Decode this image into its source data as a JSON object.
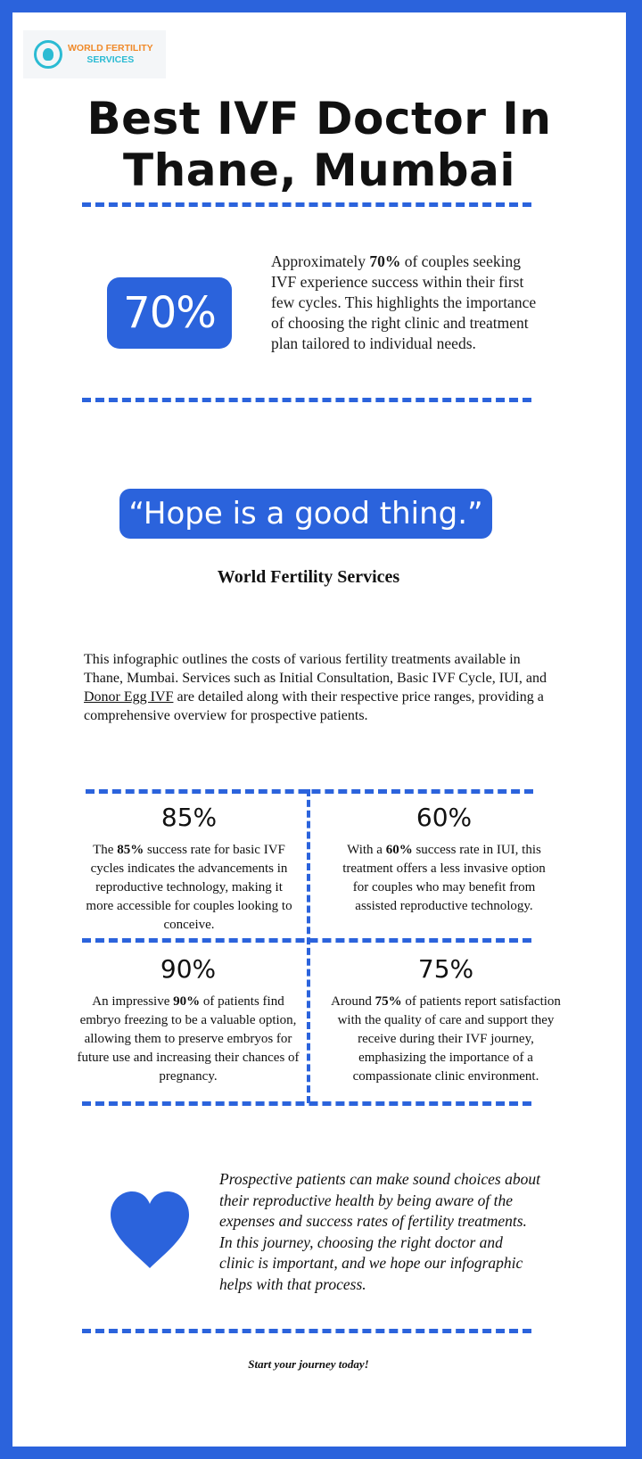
{
  "logo": {
    "line1": "WORLD FERTILITY",
    "line2": "SERVICES",
    "icon": "mother-baby-icon"
  },
  "title": {
    "line1": "Best IVF Doctor In",
    "line2": "Thane, Mumbai"
  },
  "headline_stat": {
    "value": "70%",
    "text_before": "Approximately ",
    "text_bold": "70%",
    "text_after": " of couples seeking IVF experience success within their first few cycles. This highlights the importance of choosing the right clinic and treatment plan tailored to individual needs."
  },
  "quote": {
    "text": "“Hope is a good thing.”",
    "author": "World Fertility Services"
  },
  "intro": {
    "before": "This infographic outlines the costs of various fertility treatments available in Thane, Mumbai. Services such as Initial Consultation, Basic IVF Cycle, IUI, and ",
    "link": "Donor Egg IVF",
    "after": " are detailed along with their respective price ranges, providing a comprehensive overview for prospective patients."
  },
  "stats": [
    {
      "value": "85%",
      "before": "The ",
      "bold": "85%",
      "after": " success rate for basic IVF cycles indicates the advancements in reproductive technology, making it more accessible for couples looking to conceive."
    },
    {
      "value": "60%",
      "before": "With a ",
      "bold": "60%",
      "after": " success rate in IUI, this treatment offers a less invasive option for couples who may benefit from assisted reproductive technology."
    },
    {
      "value": "90%",
      "before": "An impressive ",
      "bold": "90%",
      "after": " of patients find embryo freezing to be a valuable option, allowing them to preserve embryos for future use and increasing their chances of pregnancy."
    },
    {
      "value": "75%",
      "before": "Around ",
      "bold": "75%",
      "after": " of patients report satisfaction with the quality of care and support they receive during their IVF journey, emphasizing the importance of a compassionate clinic environment."
    }
  ],
  "closing": {
    "icon": "heart-icon",
    "text": "Prospective patients can make sound choices about their reproductive health by being aware of the expenses and success rates of fertility treatments. In this journey, choosing the right doctor and clinic is important, and we hope our infographic helps with that process."
  },
  "cta": "Start your journey today!",
  "colors": {
    "accent": "#2b63dc",
    "logo_orange": "#f08a2a",
    "logo_teal": "#2bbbd3"
  }
}
